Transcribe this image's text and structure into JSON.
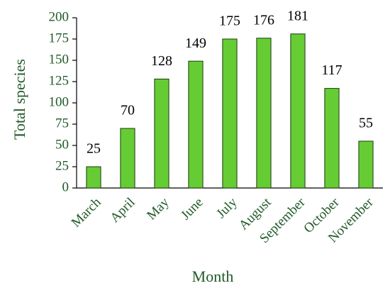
{
  "chart_data": {
    "type": "bar",
    "x_label": "Month",
    "y_label": "Total species",
    "categories": [
      "March",
      "April",
      "May",
      "June",
      "July",
      "August",
      "September",
      "October",
      "November"
    ],
    "values": [
      25,
      70,
      128,
      149,
      175,
      176,
      181,
      117,
      55
    ],
    "color": "#66cc33",
    "ylim": [
      0,
      200
    ],
    "yticks": [
      0,
      25,
      50,
      75,
      100,
      125,
      150,
      175,
      200
    ],
    "grid": false
  }
}
